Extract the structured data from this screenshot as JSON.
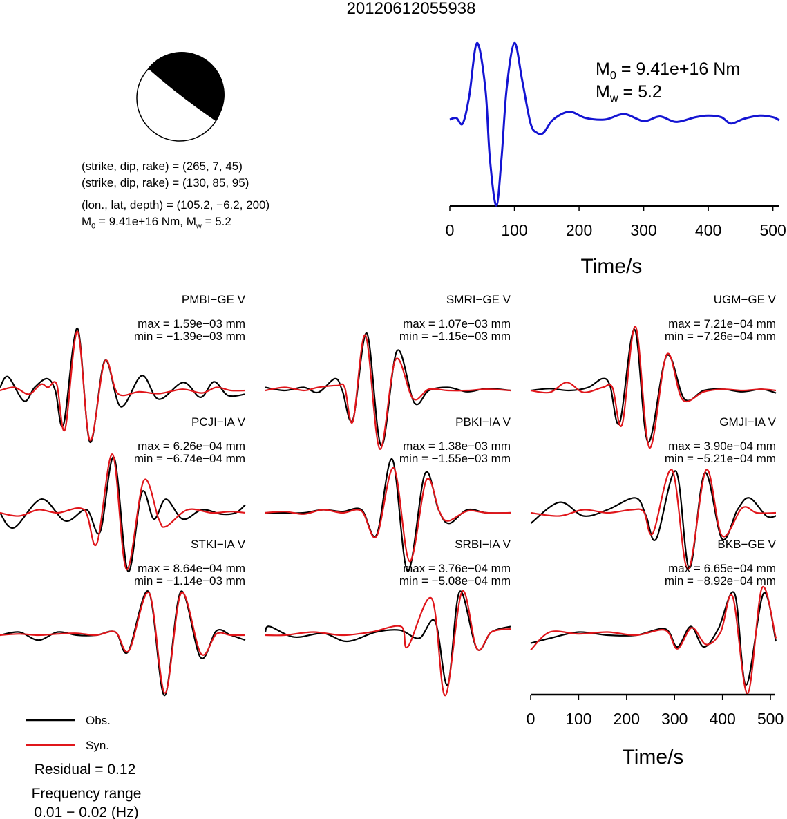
{
  "title": "20120612055938",
  "mechanism": {
    "lines": [
      "(strike, dip, rake) = (265, 7, 45)",
      "(strike, dip, rake) = (130, 85, 95)",
      "(lon., lat, depth) = (105.2, −6.2, 200)"
    ],
    "moment_line": [
      {
        "t": "M"
      },
      {
        "sub": "0"
      },
      {
        "t": " = 9.41e+16 Nm, M"
      },
      {
        "sub": "w"
      },
      {
        "t": " = 5.2"
      }
    ]
  },
  "chart_data": [
    {
      "type": "line",
      "color": "#1414d2",
      "annotation": [
        [
          {
            "t": "M"
          },
          {
            "sub": "0"
          },
          {
            "t": " = 9.41e+16 Nm"
          }
        ],
        [
          {
            "t": "M"
          },
          {
            "sub": "w"
          },
          {
            "t": " = 5.2"
          }
        ]
      ],
      "x": [
        0,
        10,
        20,
        30,
        42,
        55,
        62,
        72,
        80,
        88,
        100,
        112,
        125,
        135,
        145,
        160,
        185,
        210,
        240,
        270,
        300,
        325,
        350,
        380,
        400,
        420,
        435,
        455,
        480,
        500,
        510
      ],
      "values": [
        0,
        0.02,
        -0.05,
        0.3,
        0.98,
        0.4,
        -0.5,
        -1.1,
        -0.5,
        0.4,
        0.98,
        0.5,
        -0.05,
        -0.17,
        -0.17,
        0,
        0.1,
        0.02,
        0,
        0.07,
        -0.02,
        0.04,
        -0.03,
        0.03,
        0.05,
        0.03,
        -0.05,
        0.01,
        0.05,
        0.03,
        -0.01
      ],
      "xlim": [
        0,
        510
      ],
      "xticks": [
        0,
        100,
        200,
        300,
        400,
        500
      ],
      "xlabel": "Time/s"
    },
    {
      "type": "waveforms",
      "series": [
        {
          "name": "Obs.",
          "color": "#000000"
        },
        {
          "name": "Syn.",
          "color": "#e0161b"
        }
      ],
      "xlim": [
        0,
        510
      ],
      "xticks": [
        0,
        100,
        200,
        300,
        400,
        500
      ],
      "xlabel": "Time/s",
      "residual": "Residual = 0.12",
      "frequency": [
        "Frequency range",
        "0.01 − 0.02 (Hz)"
      ],
      "panels": [
        {
          "station": "PMBI−GE V",
          "max": "max = 1.59e−03 mm",
          "min": "min = −1.39e−03 mm",
          "obs": {
            "x": [
              0,
              17,
              50,
              72,
              98,
              115,
              132,
              161,
              187,
              218,
              251,
              295,
              330,
              381,
              417,
              445,
              474,
              510
            ],
            "values": [
              0.05,
              0.22,
              -0.17,
              0.05,
              0.19,
              0,
              -0.55,
              1,
              -0.83,
              0.48,
              -0.26,
              0.24,
              -0.14,
              0.13,
              -0.11,
              0.14,
              -0.08,
              -0.06
            ]
          },
          "syn": {
            "x": [
              0,
              30,
              60,
              85,
              100,
              118,
              135,
              161,
              187,
              218,
              245,
              290,
              330,
              380,
              420,
              450,
              480,
              510
            ],
            "values": [
              0,
              0.05,
              -0.06,
              0.1,
              0.05,
              0.1,
              -0.63,
              0.95,
              -0.8,
              0.47,
              -0.05,
              -0.02,
              -0.05,
              0.02,
              -0.04,
              0.05,
              0,
              0
            ]
          }
        },
        {
          "station": "SMRI−GE V",
          "max": "max = 1.07e−03 mm",
          "min": "min = −1.15e−03 mm",
          "obs": {
            "x": [
              0,
              40,
              80,
              110,
              145,
              160,
              182,
              211,
              241,
              274,
              310,
              340,
              380,
              420,
              460,
              510
            ],
            "values": [
              0.05,
              0,
              0.05,
              -0.03,
              0.19,
              0,
              -0.47,
              0.92,
              -0.89,
              0.64,
              -0.2,
              0,
              0.05,
              -0.02,
              0.03,
              0
            ]
          },
          "syn": {
            "x": [
              0,
              40,
              80,
              110,
              150,
              165,
              182,
              208,
              238,
              271,
              307,
              340,
              380,
              420,
              460,
              510
            ],
            "values": [
              0,
              0.05,
              0,
              0.05,
              0.08,
              0.05,
              -0.5,
              0.89,
              -0.94,
              0.5,
              -0.13,
              0.02,
              0,
              0,
              0.02,
              0
            ]
          }
        },
        {
          "station": "UGM−GE V",
          "max": "max = 7.21e−04 mm",
          "min": "min = −7.26e−04 mm",
          "obs": {
            "x": [
              0,
              40,
              80,
              120,
              149,
              165,
              185,
              216,
              244,
              283,
              320,
              360,
              400,
              440,
              480,
              510
            ],
            "values": [
              0,
              0.03,
              0,
              0.05,
              0.19,
              0.08,
              -0.52,
              0.98,
              -0.83,
              0.56,
              -0.14,
              0,
              0.02,
              -0.02,
              0.02,
              -0.04
            ]
          },
          "syn": {
            "x": [
              0,
              40,
              75,
              110,
              150,
              170,
              190,
              218,
              247,
              283,
              316,
              360,
              400,
              440,
              480,
              510
            ],
            "values": [
              0,
              -0.03,
              0.13,
              -0.03,
              0.05,
              0.05,
              -0.55,
              1.03,
              -0.92,
              0.58,
              -0.15,
              -0.02,
              0.02,
              0,
              0.02,
              0
            ]
          }
        },
        {
          "station": "PCJI−IA V",
          "max": "max = 6.26e−04 mm",
          "min": "min = −6.74e−04 mm",
          "obs": {
            "x": [
              0,
              29,
              86,
              136,
              180,
              208,
              237,
              266,
              295,
              320,
              345,
              380,
              420,
              460,
              490,
              510
            ],
            "values": [
              0,
              -0.24,
              0.22,
              -0.13,
              0.05,
              -0.31,
              0.89,
              -0.94,
              0.33,
              -0.1,
              0.22,
              -0.1,
              0.05,
              -0.02,
              0,
              0.13
            ]
          },
          "syn": {
            "x": [
              0,
              40,
              80,
              120,
              175,
              201,
              234,
              263,
              299,
              330,
              345,
              390,
              440,
              480,
              510
            ],
            "values": [
              0,
              -0.05,
              0.05,
              0,
              0.05,
              -0.5,
              0.94,
              -0.91,
              0.52,
              -0.1,
              -0.22,
              0.05,
              0,
              0.02,
              0
            ]
          }
        },
        {
          "station": "PBKI−IA V",
          "max": "max = 1.38e−03 mm",
          "min": "min = −1.55e−03 mm",
          "obs": {
            "x": [
              0,
              40,
              80,
              120,
              160,
              200,
              231,
              264,
              296,
              332,
              360,
              382,
              420,
              460,
              510
            ],
            "values": [
              0,
              0,
              0,
              0.05,
              0.02,
              0.05,
              -0.36,
              0.86,
              -0.94,
              0.63,
              0.05,
              -0.17,
              0.05,
              0,
              0
            ]
          },
          "syn": {
            "x": [
              0,
              40,
              80,
              120,
              160,
              200,
              231,
              267,
              300,
              335,
              362,
              380,
              420,
              460,
              510
            ],
            "values": [
              0,
              0.02,
              -0.02,
              0.05,
              0,
              0.03,
              -0.38,
              0.72,
              -0.78,
              0.53,
              0.02,
              -0.13,
              0.03,
              0,
              0
            ]
          }
        },
        {
          "station": "GMJI−IA V",
          "max": "max = 3.90e−04 mm",
          "min": "min = −5.21e−04 mm",
          "obs": {
            "x": [
              0,
              60,
              110,
              160,
              218,
              240,
              261,
              302,
              330,
              362,
              398,
              430,
              455,
              490,
              510
            ],
            "values": [
              -0.17,
              0.17,
              -0.05,
              0.05,
              0.24,
              -0.05,
              -0.42,
              0.67,
              -0.89,
              0.64,
              -0.42,
              0.05,
              0.24,
              -0.05,
              -0.05
            ]
          },
          "syn": {
            "x": [
              0,
              60,
              110,
              160,
              210,
              235,
              254,
              294,
              327,
              365,
              398,
              440,
              470,
              510
            ],
            "values": [
              0,
              -0.05,
              0.05,
              0,
              0.05,
              0.02,
              -0.33,
              0.69,
              -0.91,
              0.69,
              -0.37,
              0.08,
              0,
              0
            ]
          }
        },
        {
          "station": "STKI−IA V",
          "max": "max = 8.64e−04 mm",
          "min": "min = −1.14e−03 mm",
          "obs": {
            "x": [
              0,
              40,
              80,
              120,
              160,
              200,
              240,
              266,
              309,
              342,
              376,
              417,
              450,
              480,
              510
            ],
            "values": [
              0,
              0.05,
              -0.08,
              0.05,
              0,
              0,
              0.05,
              -0.27,
              0.7,
              -0.97,
              0.7,
              -0.36,
              0.07,
              0,
              -0.08
            ]
          },
          "syn": {
            "x": [
              0,
              40,
              80,
              120,
              160,
              200,
              240,
              268,
              310,
              343,
              377,
              418,
              450,
              480,
              510
            ],
            "values": [
              0,
              0.02,
              0,
              0.02,
              0.03,
              0,
              0.05,
              -0.25,
              0.68,
              -0.93,
              0.68,
              -0.3,
              0.02,
              0,
              0
            ]
          }
        },
        {
          "station": "SRBI−IA V",
          "max": "max = 3.76e−04 mm",
          "min": "min = −5.08e−04 mm",
          "obs": {
            "x": [
              0,
              9,
              60,
              120,
              170,
              230,
              280,
              320,
              353,
              379,
              404,
              440,
              470,
              510
            ],
            "values": [
              0.05,
              0.14,
              -0.03,
              0.03,
              -0.1,
              0.05,
              0.08,
              -0.05,
              0.22,
              -0.8,
              0.7,
              -0.22,
              0.05,
              0.14
            ]
          },
          "syn": {
            "x": [
              0,
              40,
              100,
              160,
              220,
              282,
              296,
              346,
              374,
              409,
              440,
              470,
              510
            ],
            "values": [
              0,
              0,
              0.05,
              0,
              0.05,
              0.14,
              -0.19,
              0.59,
              -0.97,
              0.7,
              -0.22,
              0.05,
              0.1
            ]
          }
        },
        {
          "station": "BKB−GE V",
          "max": "max = 6.65e−04 mm",
          "min": "min = −8.92e−04 mm",
          "obs": {
            "x": [
              0,
              40,
              100,
              160,
              220,
              280,
              305,
              333,
              360,
              390,
              424,
              448,
              484,
              510
            ],
            "values": [
              -0.13,
              -0.05,
              0.05,
              0,
              0,
              0.1,
              -0.19,
              0.14,
              -0.19,
              0.1,
              0.67,
              -0.8,
              0.67,
              -0.1
            ]
          },
          "syn": {
            "x": [
              0,
              40,
              100,
              160,
              220,
              280,
              305,
              335,
              365,
              395,
              420,
              451,
              481,
              510
            ],
            "values": [
              -0.24,
              0.05,
              0.02,
              0.05,
              0,
              0.08,
              -0.22,
              0.12,
              -0.15,
              0.05,
              0.62,
              -0.94,
              0.76,
              -0.05
            ]
          }
        }
      ]
    }
  ]
}
